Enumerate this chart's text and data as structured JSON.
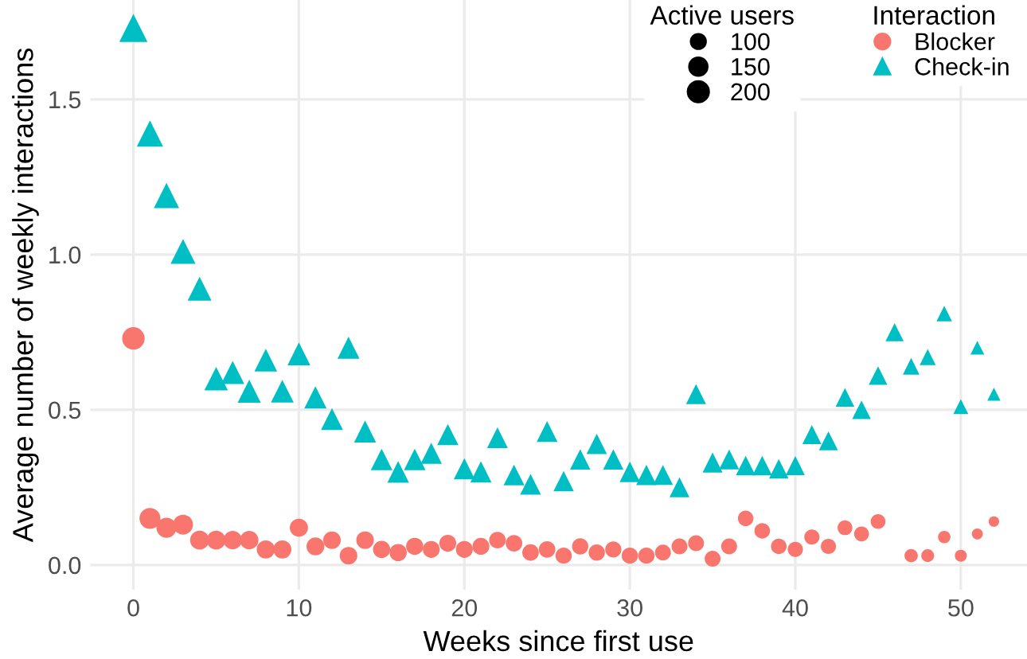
{
  "chart_data": {
    "type": "bubble",
    "xlabel": "Weeks since first use",
    "ylabel": "Average number of weekly interactions",
    "legend_title": [
      "Active users",
      "Interaction"
    ],
    "x": [
      0,
      1,
      2,
      3,
      4,
      5,
      6,
      7,
      8,
      9,
      10,
      11,
      12,
      13,
      14,
      15,
      16,
      17,
      18,
      19,
      20,
      21,
      22,
      23,
      24,
      25,
      26,
      27,
      28,
      29,
      30,
      31,
      32,
      33,
      34,
      35,
      36,
      37,
      38,
      39,
      40,
      41,
      42,
      43,
      44,
      45,
      46,
      47,
      48,
      49,
      50,
      51,
      52
    ],
    "series": [
      {
        "name": "Blocker",
        "color": "#f8766d",
        "marker": "circle",
        "values": [
          0.73,
          0.15,
          0.12,
          0.13,
          0.08,
          0.08,
          0.08,
          0.08,
          0.05,
          0.05,
          0.12,
          0.06,
          0.08,
          0.03,
          0.08,
          0.05,
          0.04,
          0.06,
          0.05,
          0.07,
          0.05,
          0.06,
          0.08,
          0.07,
          0.04,
          0.05,
          0.03,
          0.06,
          0.04,
          0.05,
          0.03,
          0.03,
          0.04,
          0.06,
          0.07,
          0.02,
          0.06,
          0.15,
          0.11,
          0.06,
          0.05,
          0.09,
          0.06,
          0.12,
          0.1,
          0.14,
          null,
          0.03,
          0.03,
          0.09,
          0.03,
          0.1,
          0.14
        ],
        "sizes": [
          230,
          200,
          185,
          180,
          165,
          160,
          155,
          155,
          150,
          150,
          150,
          145,
          140,
          140,
          140,
          135,
          135,
          135,
          130,
          130,
          130,
          130,
          125,
          125,
          125,
          125,
          120,
          120,
          120,
          120,
          120,
          120,
          115,
          115,
          115,
          115,
          115,
          110,
          110,
          110,
          105,
          105,
          105,
          100,
          100,
          100,
          null,
          80,
          75,
          70,
          65,
          55,
          50
        ]
      },
      {
        "name": "Check-in",
        "color": "#00bfc4",
        "marker": "triangle",
        "values": [
          1.73,
          1.39,
          1.19,
          1.01,
          0.89,
          0.6,
          0.62,
          0.56,
          0.66,
          0.56,
          0.68,
          0.54,
          0.47,
          0.7,
          0.43,
          0.34,
          0.3,
          0.34,
          0.36,
          0.42,
          0.31,
          0.3,
          0.41,
          0.29,
          0.26,
          0.43,
          0.27,
          0.34,
          0.39,
          0.34,
          0.3,
          0.29,
          0.29,
          0.25,
          0.55,
          0.33,
          0.34,
          0.32,
          0.32,
          0.31,
          0.32,
          0.42,
          0.4,
          0.54,
          0.5,
          0.61,
          0.75,
          0.64,
          0.67,
          0.81,
          0.51,
          0.7,
          0.55
        ],
        "sizes": [
          230,
          200,
          185,
          180,
          165,
          160,
          155,
          155,
          150,
          150,
          150,
          145,
          140,
          140,
          140,
          135,
          135,
          135,
          130,
          130,
          130,
          130,
          125,
          125,
          125,
          125,
          120,
          120,
          120,
          120,
          120,
          120,
          115,
          115,
          115,
          115,
          115,
          110,
          110,
          110,
          105,
          105,
          105,
          100,
          100,
          100,
          95,
          80,
          75,
          70,
          65,
          55,
          50
        ]
      }
    ],
    "size_legend": [
      100,
      150,
      200
    ],
    "xlim": [
      -2.6,
      54.0
    ],
    "ylim": [
      -0.08,
      1.82
    ],
    "xticks": [
      0,
      10,
      20,
      30,
      40,
      50
    ],
    "yticks": [
      {
        "value": 0,
        "label": "0.0"
      },
      {
        "value": 0.5,
        "label": "0.5"
      },
      {
        "value": 1.0,
        "label": "1.0"
      },
      {
        "value": 1.5,
        "label": "1.5"
      }
    ],
    "grid": true,
    "legend": "top right"
  }
}
